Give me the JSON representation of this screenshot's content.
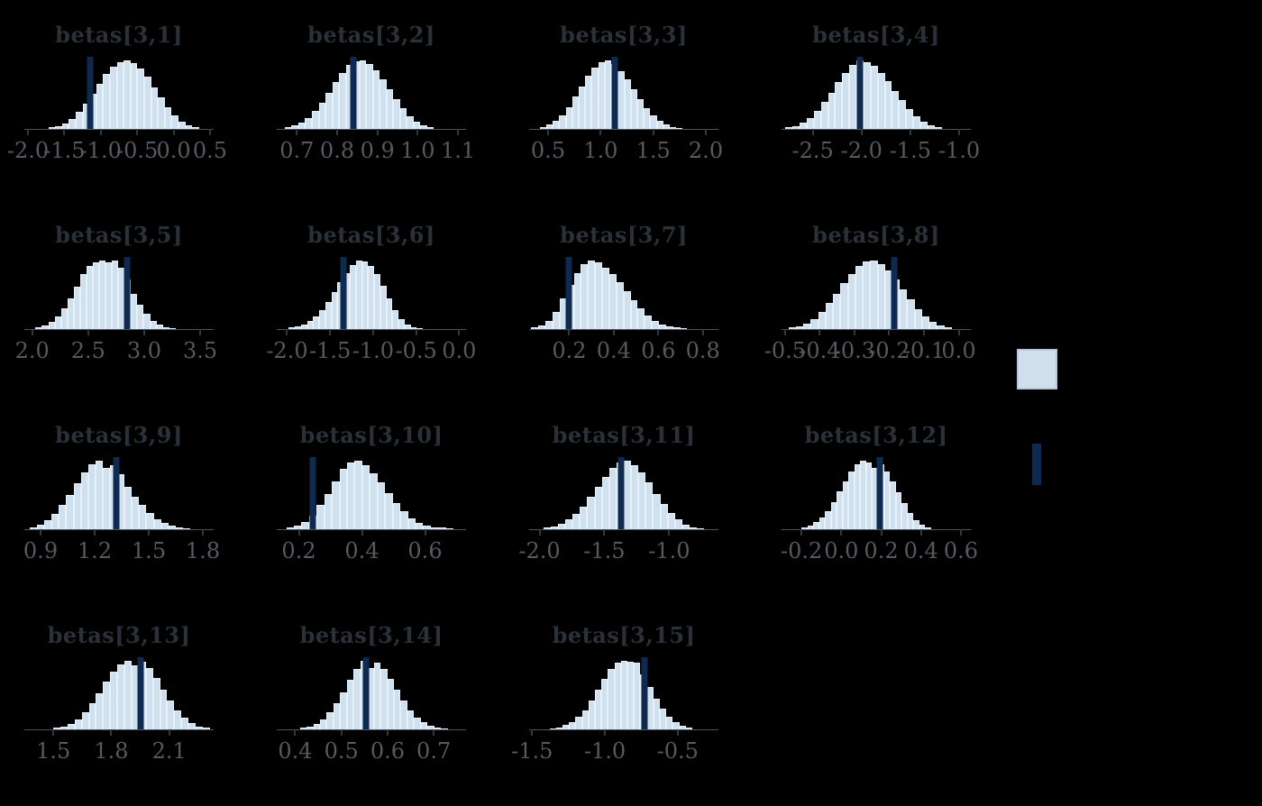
{
  "figure": {
    "background": "#000000",
    "title_color": "#2b3138",
    "axis_text_color": "#555a5e",
    "axis_line_color": "#50555b",
    "tick_color": "#33383d",
    "hist_fill": "#cfe0ee",
    "hist_border": "#e9f0f7",
    "true_color": "#0e2a50",
    "legend": {
      "estimated_swatch_fill": "#cfe0ec",
      "estimated_swatch_border": "#b5cbdd",
      "true_swatch_color": "#0e2a50"
    }
  },
  "chart_data": {
    "type": "bar",
    "subtype": "posterior-histogram-grid",
    "grid": {
      "columns": 4,
      "rows": 4
    },
    "panels": [
      {
        "title": "betas[3,1]",
        "x_ticks": [
          -2.0,
          -1.5,
          -1.0,
          -0.5,
          0.0,
          0.5
        ],
        "x_range": [
          -2.05,
          0.55
        ],
        "hist_range": [
          -1.72,
          0.35
        ],
        "true_value": -1.15,
        "bin_heights": [
          0.02,
          0.04,
          0.08,
          0.15,
          0.25,
          0.37,
          0.51,
          0.66,
          0.8,
          0.91,
          0.98,
          1.0,
          0.96,
          0.88,
          0.76,
          0.61,
          0.46,
          0.32,
          0.2,
          0.11,
          0.05,
          0.02
        ]
      },
      {
        "title": "betas[3,2]",
        "x_ticks": [
          0.7,
          0.8,
          0.9,
          1.0,
          1.1
        ],
        "x_range": [
          0.65,
          1.12
        ],
        "hist_range": [
          0.67,
          1.04
        ],
        "true_value": 0.84,
        "bin_heights": [
          0.02,
          0.05,
          0.09,
          0.16,
          0.26,
          0.38,
          0.53,
          0.68,
          0.82,
          0.93,
          0.99,
          1.0,
          0.95,
          0.86,
          0.73,
          0.58,
          0.43,
          0.3,
          0.19,
          0.1,
          0.05,
          0.02
        ]
      },
      {
        "title": "betas[3,3]",
        "x_ticks": [
          0.5,
          1.0,
          1.5,
          2.0
        ],
        "x_range": [
          0.32,
          2.12
        ],
        "hist_range": [
          0.42,
          1.78
        ],
        "true_value": 1.13,
        "bin_heights": [
          0.03,
          0.06,
          0.12,
          0.2,
          0.32,
          0.47,
          0.62,
          0.78,
          0.9,
          0.98,
          1.0,
          0.95,
          0.85,
          0.72,
          0.58,
          0.44,
          0.31,
          0.2,
          0.12,
          0.06,
          0.03,
          0.01
        ]
      },
      {
        "title": "betas[3,4]",
        "x_ticks": [
          -2.5,
          -2.0,
          -1.5,
          -1.0
        ],
        "x_range": [
          -2.82,
          -0.88
        ],
        "hist_range": [
          -2.78,
          -1.18
        ],
        "true_value": -2.02,
        "bin_heights": [
          0.02,
          0.04,
          0.09,
          0.16,
          0.26,
          0.39,
          0.53,
          0.68,
          0.82,
          0.93,
          1.0,
          0.98,
          0.92,
          0.82,
          0.7,
          0.56,
          0.42,
          0.29,
          0.18,
          0.1,
          0.05,
          0.02
        ]
      },
      {
        "title": "betas[3,5]",
        "x_ticks": [
          2.0,
          2.5,
          3.0,
          3.5
        ],
        "x_range": [
          1.93,
          3.62
        ],
        "hist_range": [
          2.03,
          3.28
        ],
        "true_value": 2.85,
        "bin_heights": [
          0.02,
          0.05,
          0.1,
          0.18,
          0.3,
          0.45,
          0.62,
          0.8,
          0.92,
          0.98,
          1.0,
          0.97,
          1.0,
          0.9,
          0.72,
          0.52,
          0.35,
          0.22,
          0.12,
          0.06,
          0.03,
          0.01
        ]
      },
      {
        "title": "betas[3,6]",
        "x_ticks": [
          -2.0,
          -1.5,
          -1.0,
          -0.5,
          0.0
        ],
        "x_range": [
          -2.12,
          0.08
        ],
        "hist_range": [
          -1.98,
          -0.42
        ],
        "true_value": -1.34,
        "bin_heights": [
          0.02,
          0.04,
          0.07,
          0.12,
          0.19,
          0.28,
          0.4,
          0.54,
          0.68,
          0.82,
          0.93,
          1.0,
          0.99,
          0.92,
          0.8,
          0.63,
          0.45,
          0.28,
          0.15,
          0.07,
          0.03,
          0.01
        ]
      },
      {
        "title": "betas[3,7]",
        "x_ticks": [
          0.2,
          0.4,
          0.6,
          0.8
        ],
        "x_range": [
          0.02,
          0.87
        ],
        "hist_range": [
          0.03,
          0.73
        ],
        "true_value": 0.2,
        "bin_heights": [
          0.02,
          0.05,
          0.12,
          0.25,
          0.45,
          0.65,
          0.82,
          0.95,
          1.0,
          0.97,
          0.9,
          0.8,
          0.68,
          0.55,
          0.42,
          0.3,
          0.2,
          0.12,
          0.07,
          0.04,
          0.02,
          0.01
        ]
      },
      {
        "title": "betas[3,8]",
        "x_ticks": [
          -0.5,
          -0.4,
          -0.3,
          -0.2,
          -0.1,
          0.0
        ],
        "x_range": [
          -0.51,
          0.035
        ],
        "hist_range": [
          -0.49,
          -0.02
        ],
        "true_value": -0.185,
        "bin_heights": [
          0.02,
          0.04,
          0.08,
          0.15,
          0.25,
          0.38,
          0.52,
          0.67,
          0.81,
          0.92,
          0.99,
          1.0,
          0.95,
          0.86,
          0.73,
          0.58,
          0.43,
          0.29,
          0.18,
          0.1,
          0.05,
          0.02
        ]
      },
      {
        "title": "betas[3,9]",
        "x_ticks": [
          0.9,
          1.2,
          1.5,
          1.8
        ],
        "x_range": [
          0.81,
          1.86
        ],
        "hist_range": [
          0.84,
          1.73
        ],
        "true_value": 1.32,
        "bin_heights": [
          0.03,
          0.07,
          0.13,
          0.22,
          0.35,
          0.5,
          0.67,
          0.83,
          0.95,
          1.0,
          0.9,
          0.94,
          0.8,
          0.62,
          0.48,
          0.35,
          0.24,
          0.15,
          0.09,
          0.05,
          0.02,
          0.01
        ]
      },
      {
        "title": "betas[3,10]",
        "x_ticks": [
          0.2,
          0.4,
          0.6
        ],
        "x_range": [
          0.13,
          0.73
        ],
        "hist_range": [
          0.16,
          0.69
        ],
        "true_value": 0.245,
        "bin_heights": [
          0.02,
          0.05,
          0.1,
          0.2,
          0.35,
          0.52,
          0.7,
          0.88,
          0.98,
          1.0,
          0.93,
          0.82,
          0.68,
          0.53,
          0.38,
          0.26,
          0.16,
          0.09,
          0.05,
          0.03,
          0.02,
          0.01
        ]
      },
      {
        "title": "betas[3,11]",
        "x_ticks": [
          -2.0,
          -1.5,
          -1.0
        ],
        "x_range": [
          -2.08,
          -0.62
        ],
        "hist_range": [
          -1.97,
          -0.73
        ],
        "true_value": -1.37,
        "bin_heights": [
          0.02,
          0.04,
          0.08,
          0.14,
          0.22,
          0.33,
          0.47,
          0.62,
          0.77,
          0.9,
          0.98,
          1.0,
          0.94,
          0.83,
          0.68,
          0.52,
          0.37,
          0.24,
          0.14,
          0.07,
          0.03,
          0.01
        ]
      },
      {
        "title": "betas[3,12]",
        "x_ticks": [
          -0.2,
          0.0,
          0.2,
          0.4,
          0.6
        ],
        "x_range": [
          -0.3,
          0.65
        ],
        "hist_range": [
          -0.2,
          0.45
        ],
        "true_value": 0.195,
        "bin_heights": [
          0.02,
          0.05,
          0.1,
          0.17,
          0.27,
          0.4,
          0.55,
          0.7,
          0.84,
          0.95,
          1.0,
          0.97,
          0.9,
          0.95,
          0.85,
          0.7,
          0.54,
          0.38,
          0.24,
          0.13,
          0.06,
          0.02
        ]
      },
      {
        "title": "betas[3,13]",
        "x_ticks": [
          1.5,
          1.8,
          2.1
        ],
        "x_range": [
          1.35,
          2.33
        ],
        "hist_range": [
          1.5,
          2.31
        ],
        "true_value": 1.95,
        "bin_heights": [
          0.02,
          0.04,
          0.08,
          0.15,
          0.25,
          0.38,
          0.53,
          0.7,
          0.85,
          0.95,
          1.0,
          0.93,
          0.99,
          0.9,
          0.75,
          0.58,
          0.42,
          0.28,
          0.17,
          0.09,
          0.04,
          0.02
        ]
      },
      {
        "title": "betas[3,14]",
        "x_ticks": [
          0.4,
          0.5,
          0.6,
          0.7
        ],
        "x_range": [
          0.36,
          0.77
        ],
        "hist_range": [
          0.41,
          0.73
        ],
        "true_value": 0.553,
        "bin_heights": [
          0.02,
          0.04,
          0.08,
          0.15,
          0.25,
          0.38,
          0.54,
          0.72,
          0.88,
          1.0,
          0.9,
          0.97,
          0.88,
          0.74,
          0.58,
          0.42,
          0.28,
          0.17,
          0.1,
          0.05,
          0.02,
          0.01
        ]
      },
      {
        "title": "betas[3,15]",
        "x_ticks": [
          -1.5,
          -1.0,
          -0.5
        ],
        "x_range": [
          -1.52,
          -0.22
        ],
        "hist_range": [
          -1.38,
          -0.4
        ],
        "true_value": -0.73,
        "bin_heights": [
          0.01,
          0.03,
          0.06,
          0.11,
          0.18,
          0.28,
          0.42,
          0.58,
          0.74,
          0.88,
          0.97,
          1.0,
          0.99,
          0.97,
          0.8,
          0.62,
          0.45,
          0.3,
          0.18,
          0.1,
          0.05,
          0.02
        ]
      }
    ],
    "legend_position": "right-middle",
    "grid_lines": false
  }
}
